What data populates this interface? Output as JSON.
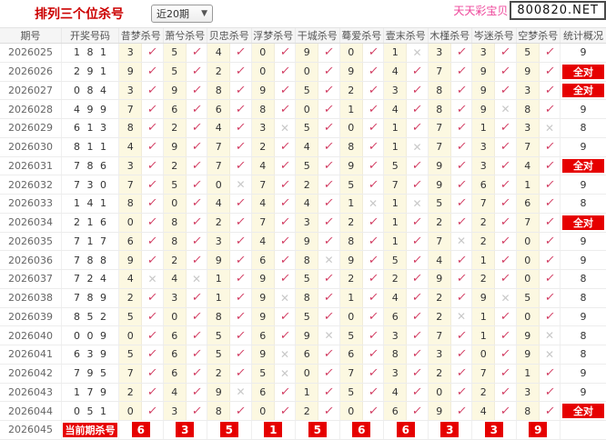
{
  "header": {
    "title": "排列三个位杀号",
    "range_select": {
      "value": "近20期",
      "chevron": "▼"
    },
    "site_name": "天天彩宝贝",
    "site_url": "800820.NET"
  },
  "marks": {
    "check": "✓",
    "cross": "✕"
  },
  "colors": {
    "title_red": "#cc0000",
    "badge_red": "#e60000",
    "check_pink": "#d23c62",
    "cross_grey": "#c8c8c8",
    "kill_cell_yellow": "#fcf8e1",
    "site_pink": "#ee4499"
  },
  "table": {
    "columns": {
      "period": "期号",
      "numbers": "开奖号码",
      "kills": [
        "昔梦杀号",
        "萧兮杀号",
        "贝忠杀号",
        "浮梦杀号",
        "干城杀号",
        "蓦爱杀号",
        "壹末杀号",
        "木槿杀号",
        "岑迷杀号",
        "空梦杀号"
      ],
      "stats": "统计概况"
    },
    "all_correct_label": "全对",
    "rows": [
      {
        "period": "2026025",
        "numbers": "1 8 1",
        "kills": [
          [
            "3",
            "ok"
          ],
          [
            "5",
            "ok"
          ],
          [
            "4",
            "ok"
          ],
          [
            "0",
            "ok"
          ],
          [
            "9",
            "ok"
          ],
          [
            "0",
            "ok"
          ],
          [
            "1",
            "miss"
          ],
          [
            "3",
            "ok"
          ],
          [
            "3",
            "ok"
          ],
          [
            "5",
            "ok"
          ]
        ],
        "stat": "9"
      },
      {
        "period": "2026026",
        "numbers": "2 9 1",
        "kills": [
          [
            "9",
            "ok"
          ],
          [
            "5",
            "ok"
          ],
          [
            "2",
            "ok"
          ],
          [
            "0",
            "ok"
          ],
          [
            "0",
            "ok"
          ],
          [
            "9",
            "ok"
          ],
          [
            "4",
            "ok"
          ],
          [
            "7",
            "ok"
          ],
          [
            "9",
            "ok"
          ],
          [
            "9",
            "ok"
          ]
        ],
        "stat": "全对"
      },
      {
        "period": "2026027",
        "numbers": "0 8 4",
        "kills": [
          [
            "3",
            "ok"
          ],
          [
            "9",
            "ok"
          ],
          [
            "8",
            "ok"
          ],
          [
            "9",
            "ok"
          ],
          [
            "5",
            "ok"
          ],
          [
            "2",
            "ok"
          ],
          [
            "3",
            "ok"
          ],
          [
            "8",
            "ok"
          ],
          [
            "9",
            "ok"
          ],
          [
            "3",
            "ok"
          ]
        ],
        "stat": "全对"
      },
      {
        "period": "2026028",
        "numbers": "4 9 9",
        "kills": [
          [
            "7",
            "ok"
          ],
          [
            "6",
            "ok"
          ],
          [
            "6",
            "ok"
          ],
          [
            "8",
            "ok"
          ],
          [
            "0",
            "ok"
          ],
          [
            "1",
            "ok"
          ],
          [
            "4",
            "ok"
          ],
          [
            "8",
            "ok"
          ],
          [
            "9",
            "miss"
          ],
          [
            "8",
            "ok"
          ]
        ],
        "stat": "9"
      },
      {
        "period": "2026029",
        "numbers": "6 1 3",
        "kills": [
          [
            "8",
            "ok"
          ],
          [
            "2",
            "ok"
          ],
          [
            "4",
            "ok"
          ],
          [
            "3",
            "miss"
          ],
          [
            "5",
            "ok"
          ],
          [
            "0",
            "ok"
          ],
          [
            "1",
            "ok"
          ],
          [
            "7",
            "ok"
          ],
          [
            "1",
            "ok"
          ],
          [
            "3",
            "miss"
          ]
        ],
        "stat": "8"
      },
      {
        "period": "2026030",
        "numbers": "8 1 1",
        "kills": [
          [
            "4",
            "ok"
          ],
          [
            "9",
            "ok"
          ],
          [
            "7",
            "ok"
          ],
          [
            "2",
            "ok"
          ],
          [
            "4",
            "ok"
          ],
          [
            "8",
            "ok"
          ],
          [
            "1",
            "miss"
          ],
          [
            "7",
            "ok"
          ],
          [
            "3",
            "ok"
          ],
          [
            "7",
            "ok"
          ]
        ],
        "stat": "9"
      },
      {
        "period": "2026031",
        "numbers": "7 8 6",
        "kills": [
          [
            "3",
            "ok"
          ],
          [
            "2",
            "ok"
          ],
          [
            "7",
            "ok"
          ],
          [
            "4",
            "ok"
          ],
          [
            "5",
            "ok"
          ],
          [
            "9",
            "ok"
          ],
          [
            "5",
            "ok"
          ],
          [
            "9",
            "ok"
          ],
          [
            "3",
            "ok"
          ],
          [
            "4",
            "ok"
          ]
        ],
        "stat": "全对"
      },
      {
        "period": "2026032",
        "numbers": "7 3 0",
        "kills": [
          [
            "7",
            "ok"
          ],
          [
            "5",
            "ok"
          ],
          [
            "0",
            "miss"
          ],
          [
            "7",
            "ok"
          ],
          [
            "2",
            "ok"
          ],
          [
            "5",
            "ok"
          ],
          [
            "7",
            "ok"
          ],
          [
            "9",
            "ok"
          ],
          [
            "6",
            "ok"
          ],
          [
            "1",
            "ok"
          ]
        ],
        "stat": "9"
      },
      {
        "period": "2026033",
        "numbers": "1 4 1",
        "kills": [
          [
            "8",
            "ok"
          ],
          [
            "0",
            "ok"
          ],
          [
            "4",
            "ok"
          ],
          [
            "4",
            "ok"
          ],
          [
            "4",
            "ok"
          ],
          [
            "1",
            "miss"
          ],
          [
            "1",
            "miss"
          ],
          [
            "5",
            "ok"
          ],
          [
            "7",
            "ok"
          ],
          [
            "6",
            "ok"
          ]
        ],
        "stat": "8"
      },
      {
        "period": "2026034",
        "numbers": "2 1 6",
        "kills": [
          [
            "0",
            "ok"
          ],
          [
            "8",
            "ok"
          ],
          [
            "2",
            "ok"
          ],
          [
            "7",
            "ok"
          ],
          [
            "3",
            "ok"
          ],
          [
            "2",
            "ok"
          ],
          [
            "1",
            "ok"
          ],
          [
            "2",
            "ok"
          ],
          [
            "2",
            "ok"
          ],
          [
            "7",
            "ok"
          ]
        ],
        "stat": "全对"
      },
      {
        "period": "2026035",
        "numbers": "7 1 7",
        "kills": [
          [
            "6",
            "ok"
          ],
          [
            "8",
            "ok"
          ],
          [
            "3",
            "ok"
          ],
          [
            "4",
            "ok"
          ],
          [
            "9",
            "ok"
          ],
          [
            "8",
            "ok"
          ],
          [
            "1",
            "ok"
          ],
          [
            "7",
            "miss"
          ],
          [
            "2",
            "ok"
          ],
          [
            "0",
            "ok"
          ]
        ],
        "stat": "9"
      },
      {
        "period": "2026036",
        "numbers": "7 8 8",
        "kills": [
          [
            "9",
            "ok"
          ],
          [
            "2",
            "ok"
          ],
          [
            "9",
            "ok"
          ],
          [
            "6",
            "ok"
          ],
          [
            "8",
            "miss"
          ],
          [
            "9",
            "ok"
          ],
          [
            "5",
            "ok"
          ],
          [
            "4",
            "ok"
          ],
          [
            "1",
            "ok"
          ],
          [
            "0",
            "ok"
          ]
        ],
        "stat": "9"
      },
      {
        "period": "2026037",
        "numbers": "7 2 4",
        "kills": [
          [
            "4",
            "miss"
          ],
          [
            "4",
            "miss"
          ],
          [
            "1",
            "ok"
          ],
          [
            "9",
            "ok"
          ],
          [
            "5",
            "ok"
          ],
          [
            "2",
            "ok"
          ],
          [
            "2",
            "ok"
          ],
          [
            "9",
            "ok"
          ],
          [
            "2",
            "ok"
          ],
          [
            "0",
            "ok"
          ]
        ],
        "stat": "8"
      },
      {
        "period": "2026038",
        "numbers": "7 8 9",
        "kills": [
          [
            "2",
            "ok"
          ],
          [
            "3",
            "ok"
          ],
          [
            "1",
            "ok"
          ],
          [
            "9",
            "miss"
          ],
          [
            "8",
            "ok"
          ],
          [
            "1",
            "ok"
          ],
          [
            "4",
            "ok"
          ],
          [
            "2",
            "ok"
          ],
          [
            "9",
            "miss"
          ],
          [
            "5",
            "ok"
          ]
        ],
        "stat": "8"
      },
      {
        "period": "2026039",
        "numbers": "8 5 2",
        "kills": [
          [
            "5",
            "ok"
          ],
          [
            "0",
            "ok"
          ],
          [
            "8",
            "ok"
          ],
          [
            "9",
            "ok"
          ],
          [
            "5",
            "ok"
          ],
          [
            "0",
            "ok"
          ],
          [
            "6",
            "ok"
          ],
          [
            "2",
            "miss"
          ],
          [
            "1",
            "ok"
          ],
          [
            "0",
            "ok"
          ]
        ],
        "stat": "9"
      },
      {
        "period": "2026040",
        "numbers": "0 0 9",
        "kills": [
          [
            "0",
            "ok"
          ],
          [
            "6",
            "ok"
          ],
          [
            "5",
            "ok"
          ],
          [
            "6",
            "ok"
          ],
          [
            "9",
            "miss"
          ],
          [
            "5",
            "ok"
          ],
          [
            "3",
            "ok"
          ],
          [
            "7",
            "ok"
          ],
          [
            "1",
            "ok"
          ],
          [
            "9",
            "miss"
          ]
        ],
        "stat": "8"
      },
      {
        "period": "2026041",
        "numbers": "6 3 9",
        "kills": [
          [
            "5",
            "ok"
          ],
          [
            "6",
            "ok"
          ],
          [
            "5",
            "ok"
          ],
          [
            "9",
            "miss"
          ],
          [
            "6",
            "ok"
          ],
          [
            "6",
            "ok"
          ],
          [
            "8",
            "ok"
          ],
          [
            "3",
            "ok"
          ],
          [
            "0",
            "ok"
          ],
          [
            "9",
            "miss"
          ]
        ],
        "stat": "8"
      },
      {
        "period": "2026042",
        "numbers": "7 9 5",
        "kills": [
          [
            "7",
            "ok"
          ],
          [
            "6",
            "ok"
          ],
          [
            "2",
            "ok"
          ],
          [
            "5",
            "miss"
          ],
          [
            "0",
            "ok"
          ],
          [
            "7",
            "ok"
          ],
          [
            "3",
            "ok"
          ],
          [
            "2",
            "ok"
          ],
          [
            "7",
            "ok"
          ],
          [
            "1",
            "ok"
          ]
        ],
        "stat": "9"
      },
      {
        "period": "2026043",
        "numbers": "1 7 9",
        "kills": [
          [
            "2",
            "ok"
          ],
          [
            "4",
            "ok"
          ],
          [
            "9",
            "miss"
          ],
          [
            "6",
            "ok"
          ],
          [
            "1",
            "ok"
          ],
          [
            "5",
            "ok"
          ],
          [
            "4",
            "ok"
          ],
          [
            "0",
            "ok"
          ],
          [
            "2",
            "ok"
          ],
          [
            "3",
            "ok"
          ]
        ],
        "stat": "9"
      },
      {
        "period": "2026044",
        "numbers": "0 5 1",
        "kills": [
          [
            "0",
            "ok"
          ],
          [
            "3",
            "ok"
          ],
          [
            "8",
            "ok"
          ],
          [
            "0",
            "ok"
          ],
          [
            "2",
            "ok"
          ],
          [
            "0",
            "ok"
          ],
          [
            "6",
            "ok"
          ],
          [
            "9",
            "ok"
          ],
          [
            "4",
            "ok"
          ],
          [
            "8",
            "ok"
          ]
        ],
        "stat": "全对"
      }
    ],
    "current_row": {
      "period": "2026045",
      "label": "当前期杀号",
      "kills": [
        "6",
        "3",
        "5",
        "1",
        "5",
        "6",
        "6",
        "3",
        "3",
        "9"
      ]
    }
  }
}
